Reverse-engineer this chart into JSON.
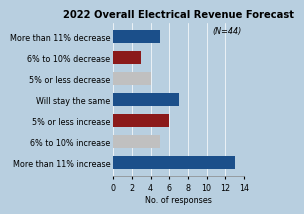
{
  "title": "2022 Overall Electrical Revenue Forecast",
  "annotation": "(N=44)",
  "categories": [
    "More than 11% increase",
    "6% to 10% increase",
    "5% or less increase",
    "Will stay the same",
    "5% or less decrease",
    "6% to 10% decrease",
    "More than 11% decrease"
  ],
  "values": [
    13,
    5,
    6,
    7,
    4,
    3,
    5
  ],
  "colors": [
    "#1b4f8a",
    "#c0c0c0",
    "#8b1a1a",
    "#1b4f8a",
    "#c0c0c0",
    "#8b1a1a",
    "#1b4f8a"
  ],
  "xlabel": "No. of responses",
  "xlim": [
    0,
    14
  ],
  "xticks": [
    0,
    2,
    4,
    6,
    8,
    10,
    12,
    14
  ],
  "background_color": "#b8cfe0",
  "title_fontsize": 7.2,
  "label_fontsize": 5.8,
  "tick_fontsize": 5.8
}
